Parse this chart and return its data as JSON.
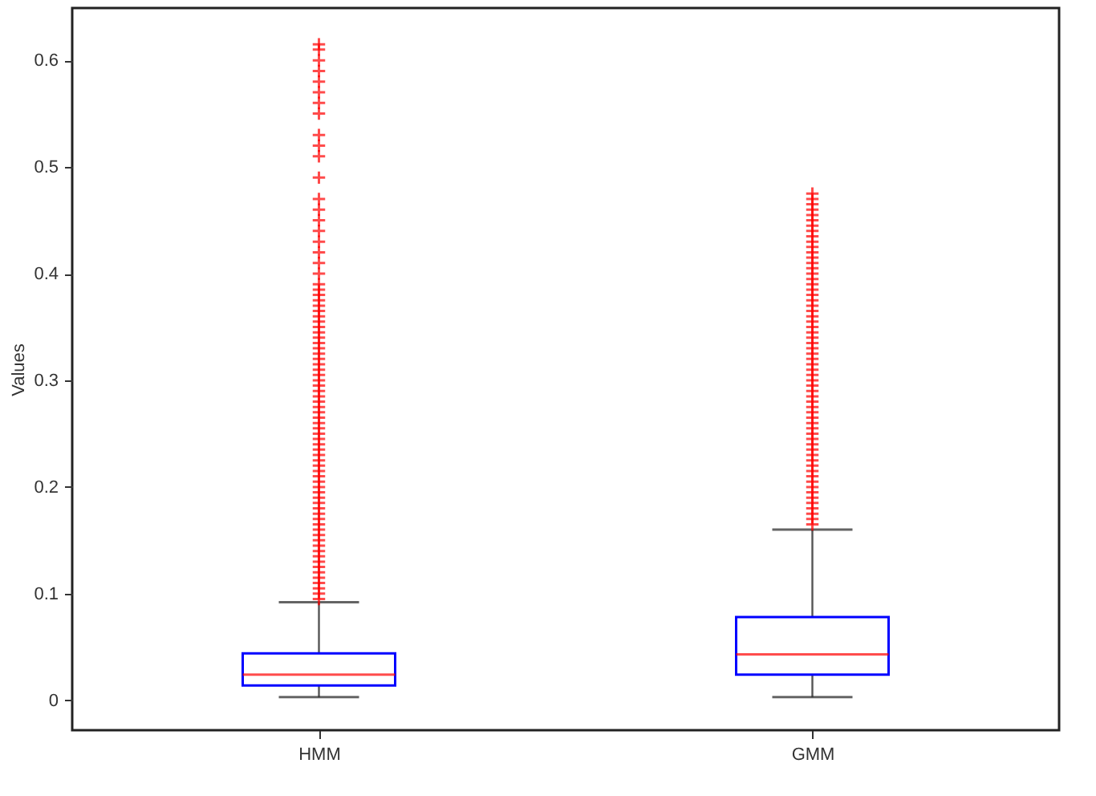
{
  "chart_data": {
    "type": "box",
    "ylabel": "Values",
    "categories": [
      "HMM",
      "GMM"
    ],
    "ylim": [
      -0.028,
      0.649
    ],
    "yticks": [
      0,
      0.1,
      0.2,
      0.3,
      0.4,
      0.5,
      0.6
    ],
    "grid": false,
    "marker": "cross",
    "series": [
      {
        "color": "#0000ff",
        "boxes": [
          {
            "low": 0.003,
            "q1": 0.014,
            "median": 0.024,
            "q3": 0.044,
            "high": 0.092,
            "outliers": [
              0.095,
              0.1,
              0.105,
              0.11,
              0.115,
              0.12,
              0.125,
              0.13,
              0.135,
              0.14,
              0.145,
              0.15,
              0.155,
              0.16,
              0.165,
              0.17,
              0.175,
              0.18,
              0.185,
              0.19,
              0.195,
              0.2,
              0.205,
              0.21,
              0.215,
              0.22,
              0.225,
              0.23,
              0.235,
              0.24,
              0.245,
              0.25,
              0.255,
              0.26,
              0.265,
              0.27,
              0.275,
              0.28,
              0.285,
              0.29,
              0.295,
              0.3,
              0.305,
              0.31,
              0.315,
              0.32,
              0.325,
              0.33,
              0.335,
              0.34,
              0.345,
              0.35,
              0.355,
              0.36,
              0.365,
              0.37,
              0.375,
              0.38,
              0.385,
              0.39,
              0.4,
              0.41,
              0.42,
              0.43,
              0.44,
              0.45,
              0.46,
              0.47,
              0.49,
              0.51,
              0.52,
              0.53,
              0.55,
              0.56,
              0.57,
              0.58,
              0.59,
              0.6,
              0.61,
              0.615
            ]
          },
          {
            "low": 0.003,
            "q1": 0.024,
            "median": 0.043,
            "q3": 0.078,
            "high": 0.16,
            "outliers": [
              0.165,
              0.17,
              0.175,
              0.18,
              0.185,
              0.19,
              0.195,
              0.2,
              0.205,
              0.21,
              0.215,
              0.22,
              0.225,
              0.23,
              0.235,
              0.24,
              0.245,
              0.25,
              0.255,
              0.26,
              0.265,
              0.27,
              0.275,
              0.28,
              0.285,
              0.29,
              0.295,
              0.3,
              0.305,
              0.31,
              0.315,
              0.32,
              0.325,
              0.33,
              0.335,
              0.34,
              0.345,
              0.35,
              0.355,
              0.36,
              0.365,
              0.37,
              0.375,
              0.38,
              0.385,
              0.39,
              0.395,
              0.4,
              0.405,
              0.41,
              0.415,
              0.42,
              0.425,
              0.43,
              0.435,
              0.44,
              0.445,
              0.45,
              0.455,
              0.46,
              0.465,
              0.47,
              0.475
            ]
          }
        ]
      }
    ]
  }
}
